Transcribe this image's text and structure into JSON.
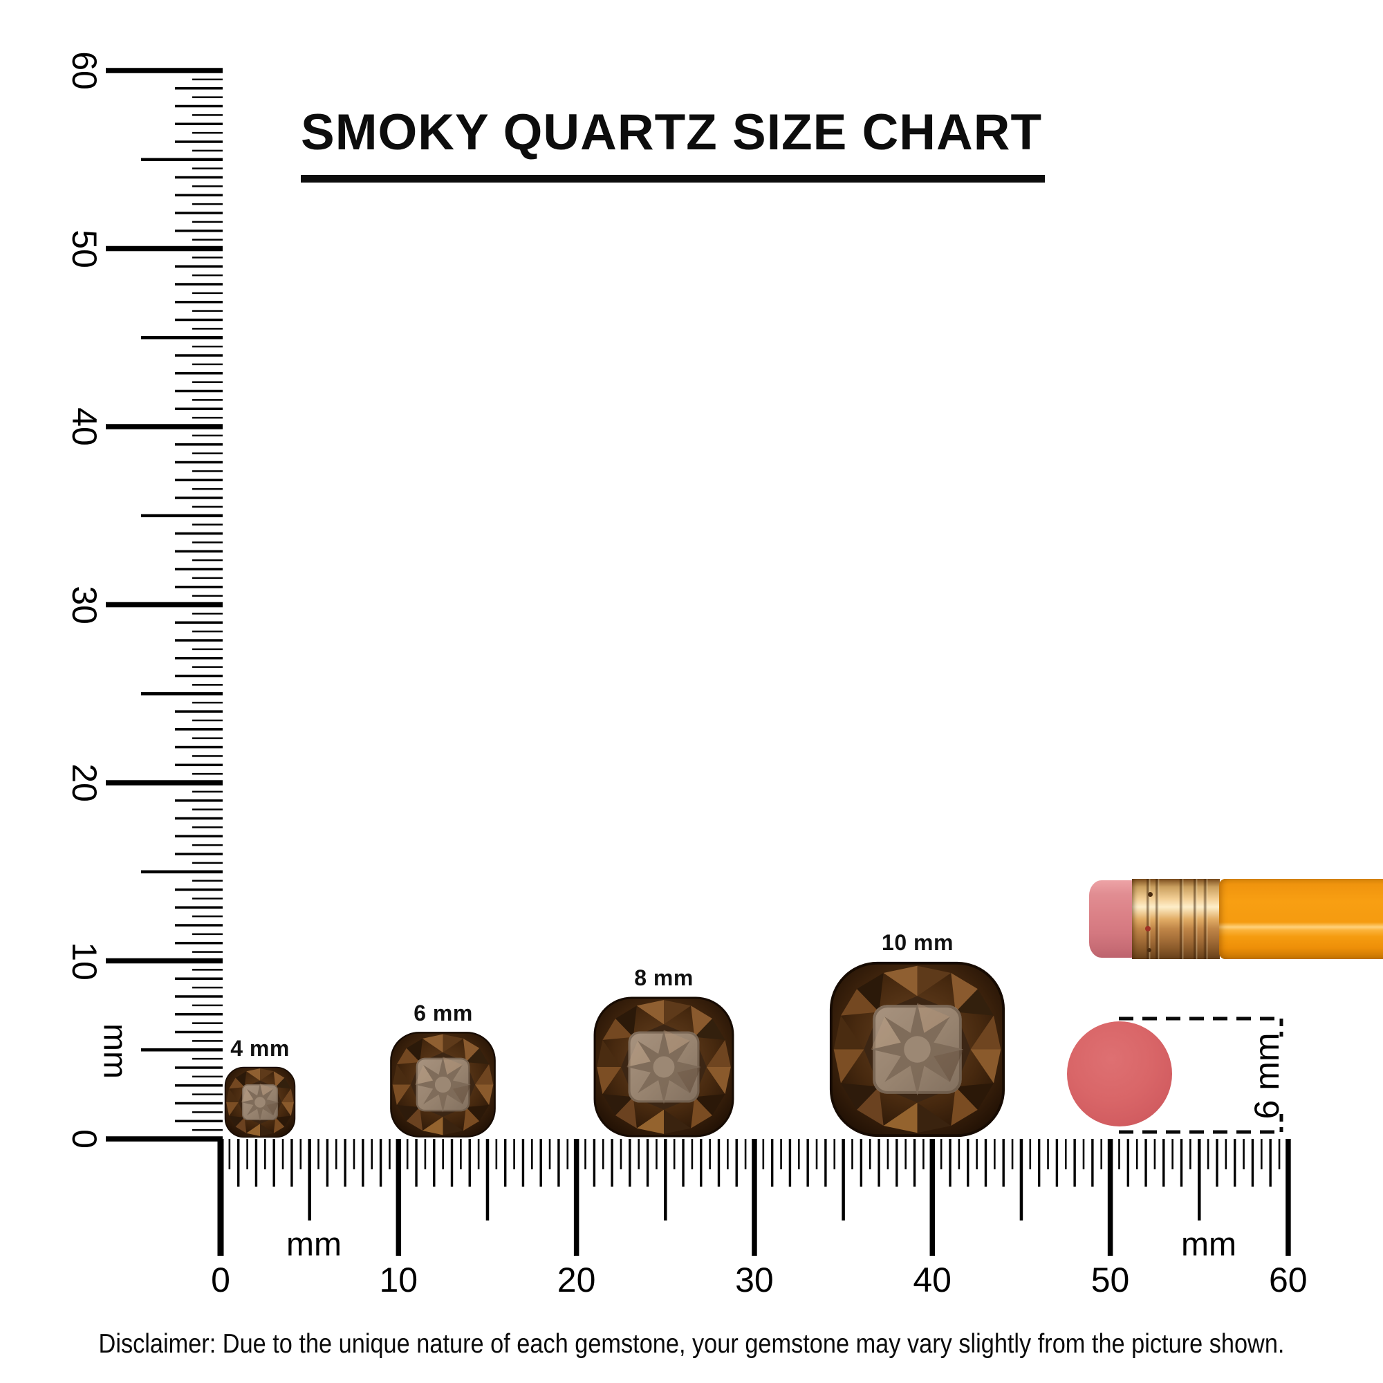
{
  "title": "SMOKY QUARTZ SIZE CHART",
  "rulers": {
    "vertical": {
      "unit": "mm",
      "labels": [
        "60",
        "50",
        "40",
        "30",
        "20",
        "10",
        "0"
      ]
    },
    "horizontal": {
      "unit_left": "mm",
      "unit_right": "mm",
      "labels": [
        "0",
        "10",
        "20",
        "30",
        "40",
        "50",
        "60"
      ]
    }
  },
  "gems": [
    {
      "label": "4 mm",
      "size_mm": 4
    },
    {
      "label": "6 mm",
      "size_mm": 6
    },
    {
      "label": "8 mm",
      "size_mm": 8
    },
    {
      "label": "10 mm",
      "size_mm": 10
    }
  ],
  "reference_objects": {
    "pencil": {
      "description": "orange pencil with pink eraser tip and gold ferrule"
    },
    "eraser_disc": {
      "dimension_label": "6 mm",
      "diameter_mm": 6
    }
  },
  "disclaimer": "Disclaimer: Due to the unique nature of each gemstone, your gemstone may vary slightly from the picture shown.",
  "colors": {
    "ink": "#000000",
    "gem_dark": "#2a1708",
    "gem_mid": "#7a4c22",
    "gem_table": "#97836f",
    "pencil_body": "#f79d10",
    "pencil_ferrule": "#d9a45e",
    "pencil_eraser_tip": "#db8187",
    "eraser_disc": "#d66568"
  }
}
